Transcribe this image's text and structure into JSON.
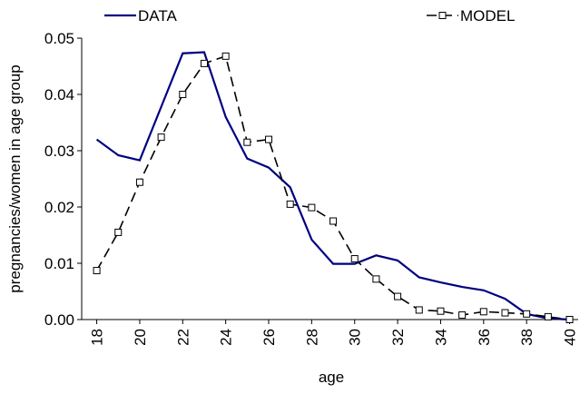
{
  "chart_data": {
    "type": "line",
    "x_label": "age",
    "y_label": "pregnancies/women in age group",
    "x": [
      18,
      19,
      20,
      21,
      22,
      23,
      24,
      25,
      26,
      27,
      28,
      29,
      30,
      31,
      32,
      33,
      34,
      35,
      36,
      37,
      38,
      39,
      40
    ],
    "series": [
      {
        "name": "DATA",
        "color": "#000080",
        "dash": false,
        "marker": "none",
        "values": [
          0.032,
          0.0292,
          0.0283,
          0.0378,
          0.0473,
          0.0475,
          0.036,
          0.0286,
          0.027,
          0.0235,
          0.0142,
          0.0099,
          0.0099,
          0.0114,
          0.0105,
          0.0075,
          0.0066,
          0.0058,
          0.0052,
          0.0037,
          0.001,
          0.0002,
          0.0
        ]
      },
      {
        "name": "MODEL",
        "color": "#000000",
        "dash": true,
        "marker": "square",
        "values": [
          0.0087,
          0.0155,
          0.0244,
          0.0324,
          0.04,
          0.0455,
          0.0468,
          0.0315,
          0.032,
          0.0205,
          0.0199,
          0.0175,
          0.0108,
          0.0072,
          0.0041,
          0.0017,
          0.0015,
          0.0008,
          0.0014,
          0.0012,
          0.001,
          0.0005,
          0.0
        ]
      }
    ],
    "xlim": [
      17.3,
      40.4
    ],
    "xticks": [
      18,
      20,
      22,
      24,
      26,
      28,
      30,
      32,
      34,
      36,
      38,
      40
    ],
    "ylim": [
      0,
      0.05
    ],
    "yticks": [
      {
        "value": 0,
        "label": "0.00"
      },
      0.01,
      0.02,
      0.03,
      0.04,
      0.05
    ],
    "grid": false,
    "legend": "top"
  }
}
